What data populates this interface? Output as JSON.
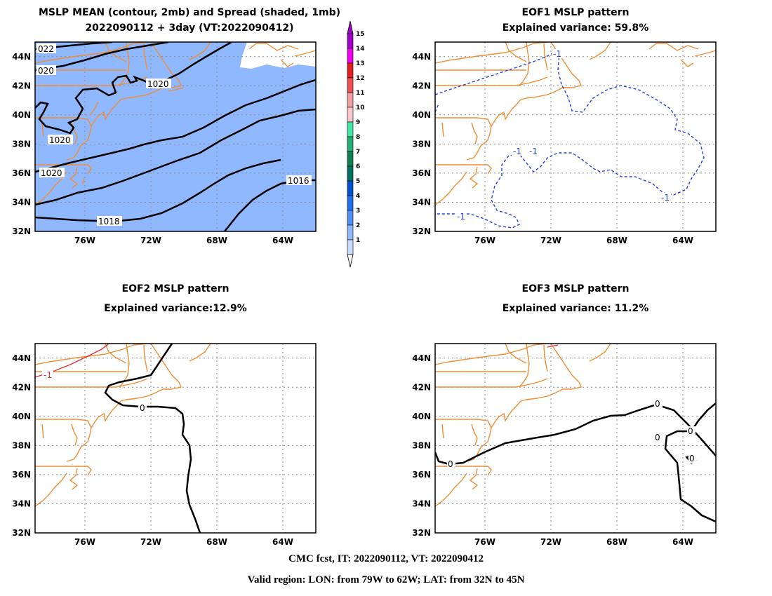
{
  "panels": [
    {
      "id": "p1",
      "title_line1": "MSLP MEAN (contour, 2mb) and Spread (shaded, 1mb)",
      "title_line2": "2022090112 + 3day (VT:2022090412)"
    },
    {
      "id": "p2",
      "title_line1": "EOF1 MSLP pattern",
      "title_line2": "Explained variance: 59.8%"
    },
    {
      "id": "p3",
      "title_line1": "EOF2 MSLP pattern",
      "title_line2": "Explained variance:12.9%"
    },
    {
      "id": "p4",
      "title_line1": "EOF3 MSLP pattern",
      "title_line2": "Explained variance: 11.2%"
    }
  ],
  "lat_labels": [
    "44N",
    "42N",
    "40N",
    "38N",
    "36N",
    "34N",
    "32N"
  ],
  "lon_labels": [
    "76W",
    "72W",
    "68W",
    "64W"
  ],
  "colorbar": {
    "labels": [
      "15",
      "14",
      "13",
      "12",
      "11",
      "10",
      "9",
      "8",
      "7",
      "6",
      "5",
      "4",
      "3",
      "2",
      "1"
    ],
    "colors": [
      "#a000c8",
      "#f000f0",
      "#e02020",
      "#f05050",
      "#f0a0a0",
      "#f8c8c8",
      "#40e8a0",
      "#20b070",
      "#108050",
      "#007060",
      "#0050d0",
      "#2070f0",
      "#5090f8",
      "#90b8ff",
      "#c8dcff"
    ]
  },
  "contour_labels": {
    "p1": [
      "022",
      "020",
      "1020",
      "1020",
      "1020",
      "1016",
      "1018"
    ],
    "p2": [
      "-1",
      "-1",
      "-1",
      "-1",
      "-1"
    ],
    "p3": [
      "-1",
      "0"
    ],
    "p4": [
      "0",
      "0",
      "0",
      "0",
      "0"
    ]
  },
  "colors": {
    "coastline": "#ef8e35",
    "spread_fill": "#90b8ff",
    "eof_negative": "#2040e0",
    "eof_positive": "#e03030"
  },
  "footer_line1": "CMC fcst, IT: 2022090112, VT: 2022090412",
  "footer_line2": "Valid region: LON: from 79W to 62W; LAT: from 32N to 45N"
}
